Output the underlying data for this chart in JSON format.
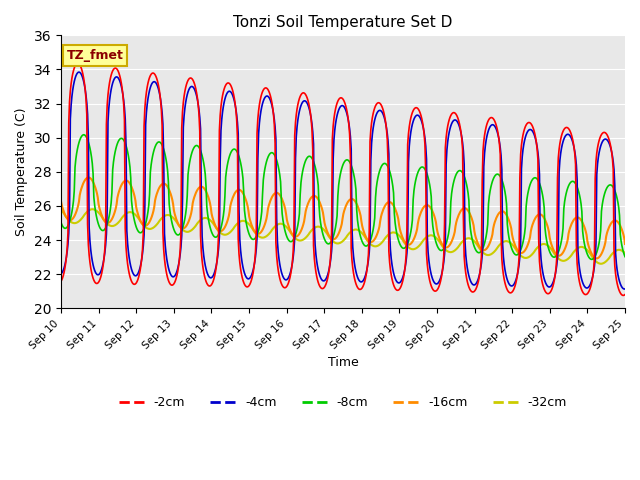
{
  "title": "Tonzi Soil Temperature Set D",
  "xlabel": "Time",
  "ylabel": "Soil Temperature (C)",
  "ylim": [
    20,
    36
  ],
  "yticks": [
    20,
    22,
    24,
    26,
    28,
    30,
    32,
    34,
    36
  ],
  "x_tick_labels": [
    "Sep 10",
    "Sep 11",
    "Sep 12",
    "Sep 13",
    "Sep 14",
    "Sep 15",
    "Sep 16",
    "Sep 17",
    "Sep 18",
    "Sep 19",
    "Sep 20",
    "Sep 21",
    "Sep 22",
    "Sep 23",
    "Sep 24",
    "Sep 25"
  ],
  "colors": {
    "-2cm": "#FF0000",
    "-4cm": "#0000CC",
    "-8cm": "#00CC00",
    "-16cm": "#FF8C00",
    "-32cm": "#CCCC00"
  },
  "annotation_text": "TZ_fmet",
  "annotation_bg": "#FFFF99",
  "annotation_border": "#CCAA00",
  "background_color": "#E8E8E8",
  "fig_bg": "#FFFFFF"
}
